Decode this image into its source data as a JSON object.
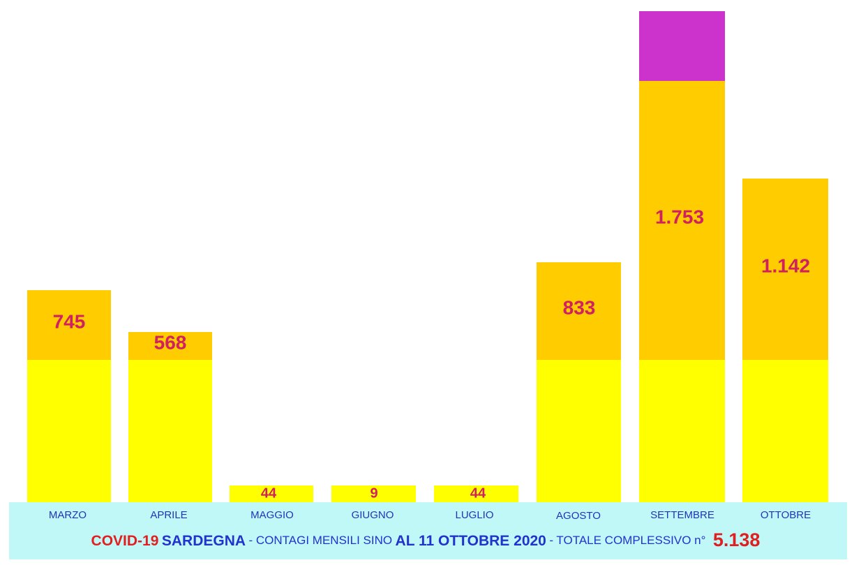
{
  "months": [
    {
      "name": "MARZO",
      "label": "745"
    },
    {
      "name": "APRILE",
      "label": "568"
    },
    {
      "name": "MAGGIO",
      "label": "44"
    },
    {
      "name": "GIUGNO",
      "label": "9"
    },
    {
      "name": "LUGLIO",
      "label": "44"
    },
    {
      "name": "AGOSTO",
      "label": "833"
    },
    {
      "name": "SETTEMBRE",
      "label": "1.753"
    },
    {
      "name": "OTTOBRE",
      "label": "1.142"
    }
  ],
  "footer": {
    "covid": "COVID-19",
    "region": "SARDEGNA",
    "text1": "- CONTAGI MENSILI SINO",
    "date": "AL 11 OTTOBRE 2020",
    "text2": "- TOTALE COMPLESSIVO n°",
    "total": "5.138"
  }
}
